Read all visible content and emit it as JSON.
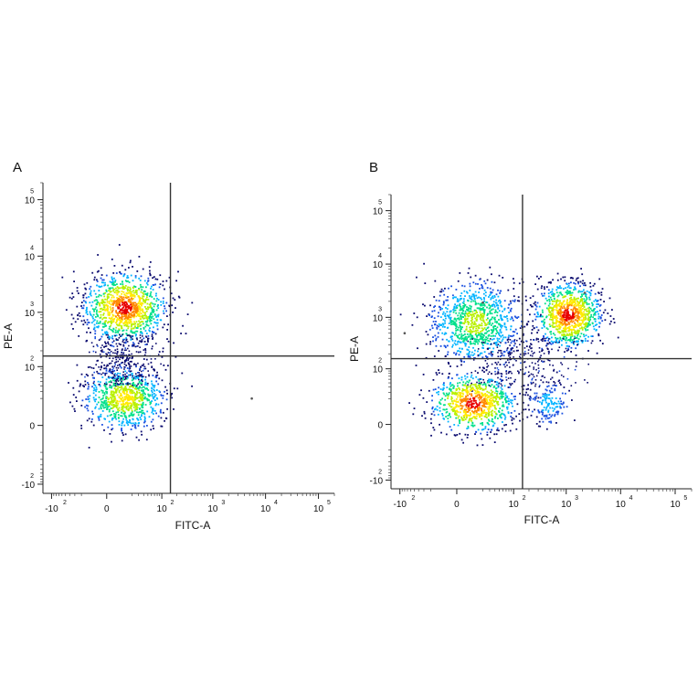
{
  "chart_data": [
    {
      "panel_label": "A",
      "type": "scatter",
      "xlabel": "FITC-A",
      "ylabel": "PE-A",
      "xscale": "biexponential",
      "yscale": "biexponential",
      "x_ticks": [
        {
          "value": -100,
          "base": "-10",
          "exp": "2"
        },
        {
          "value": 0,
          "base": "0",
          "exp": ""
        },
        {
          "value": 100,
          "base": "10",
          "exp": "2"
        },
        {
          "value": 1000,
          "base": "10",
          "exp": "3"
        },
        {
          "value": 10000,
          "base": "10",
          "exp": "4"
        },
        {
          "value": 100000,
          "base": "10",
          "exp": "5"
        }
      ],
      "y_ticks": [
        {
          "value": -100,
          "base": "-10",
          "exp": "2"
        },
        {
          "value": 0,
          "base": "0",
          "exp": ""
        },
        {
          "value": 100,
          "base": "10",
          "exp": "2"
        },
        {
          "value": 1000,
          "base": "10",
          "exp": "3"
        },
        {
          "value": 10000,
          "base": "10",
          "exp": "4"
        },
        {
          "value": 100000,
          "base": "10",
          "exp": "5"
        }
      ],
      "xlim": [
        -150,
        200000
      ],
      "ylim": [
        -150,
        200000
      ],
      "quadrant_gate": {
        "x": 150,
        "y": 160
      },
      "populations": [
        {
          "x": 12,
          "y": 1200,
          "count": 1100,
          "sx": 0.07,
          "sy": 0.055,
          "peak": "red"
        },
        {
          "x": 12,
          "y": 20,
          "count": 850,
          "sx": 0.07,
          "sy": 0.05,
          "peak": "yellow"
        }
      ],
      "bridge": {
        "x": 10,
        "y_from": 40,
        "y_to": 400,
        "count": 320
      },
      "outliers": [
        [
          5500,
          20
        ]
      ],
      "colormap": [
        "#0a0a6e",
        "#1a50e0",
        "#00b4ff",
        "#00e08a",
        "#b8f000",
        "#ffea00",
        "#ff8800",
        "#e80000"
      ]
    },
    {
      "panel_label": "B",
      "type": "scatter",
      "xlabel": "FITC-A",
      "ylabel": "PE-A",
      "xscale": "biexponential",
      "yscale": "biexponential",
      "x_ticks": [
        {
          "value": -100,
          "base": "-10",
          "exp": "2"
        },
        {
          "value": 0,
          "base": "0",
          "exp": ""
        },
        {
          "value": 100,
          "base": "10",
          "exp": "2"
        },
        {
          "value": 1000,
          "base": "10",
          "exp": "3"
        },
        {
          "value": 10000,
          "base": "10",
          "exp": "4"
        },
        {
          "value": 100000,
          "base": "10",
          "exp": "5"
        }
      ],
      "y_ticks": [
        {
          "value": -100,
          "base": "-10",
          "exp": "2"
        },
        {
          "value": 0,
          "base": "0",
          "exp": ""
        },
        {
          "value": 100,
          "base": "10",
          "exp": "2"
        },
        {
          "value": 1000,
          "base": "10",
          "exp": "3"
        },
        {
          "value": 10000,
          "base": "10",
          "exp": "4"
        },
        {
          "value": 100000,
          "base": "10",
          "exp": "5"
        }
      ],
      "xlim": [
        -150,
        200000
      ],
      "ylim": [
        -150,
        200000
      ],
      "quadrant_gate": {
        "x": 150,
        "y": 160
      },
      "populations": [
        {
          "x": 12,
          "y": 800,
          "count": 950,
          "sx": 0.075,
          "sy": 0.07,
          "peak": "green"
        },
        {
          "x": 10,
          "y": 15,
          "count": 850,
          "sx": 0.07,
          "sy": 0.05,
          "peak": "red"
        },
        {
          "x": 1100,
          "y": 1100,
          "count": 950,
          "sx": 0.055,
          "sy": 0.055,
          "peak": "red"
        },
        {
          "x": 500,
          "y": 15,
          "count": 160,
          "sx": 0.035,
          "sy": 0.035,
          "peak": "blue"
        }
      ],
      "bridge": {
        "x": 160,
        "y_from": 40,
        "y_to": 400,
        "count": 260
      },
      "outliers": [
        [
          20,
          1900
        ],
        [
          2200,
          2900
        ],
        [
          -80,
          500
        ]
      ],
      "colormap": [
        "#0a0a6e",
        "#1a50e0",
        "#00b4ff",
        "#00e08a",
        "#b8f000",
        "#ffea00",
        "#ff8800",
        "#e80000"
      ]
    }
  ]
}
